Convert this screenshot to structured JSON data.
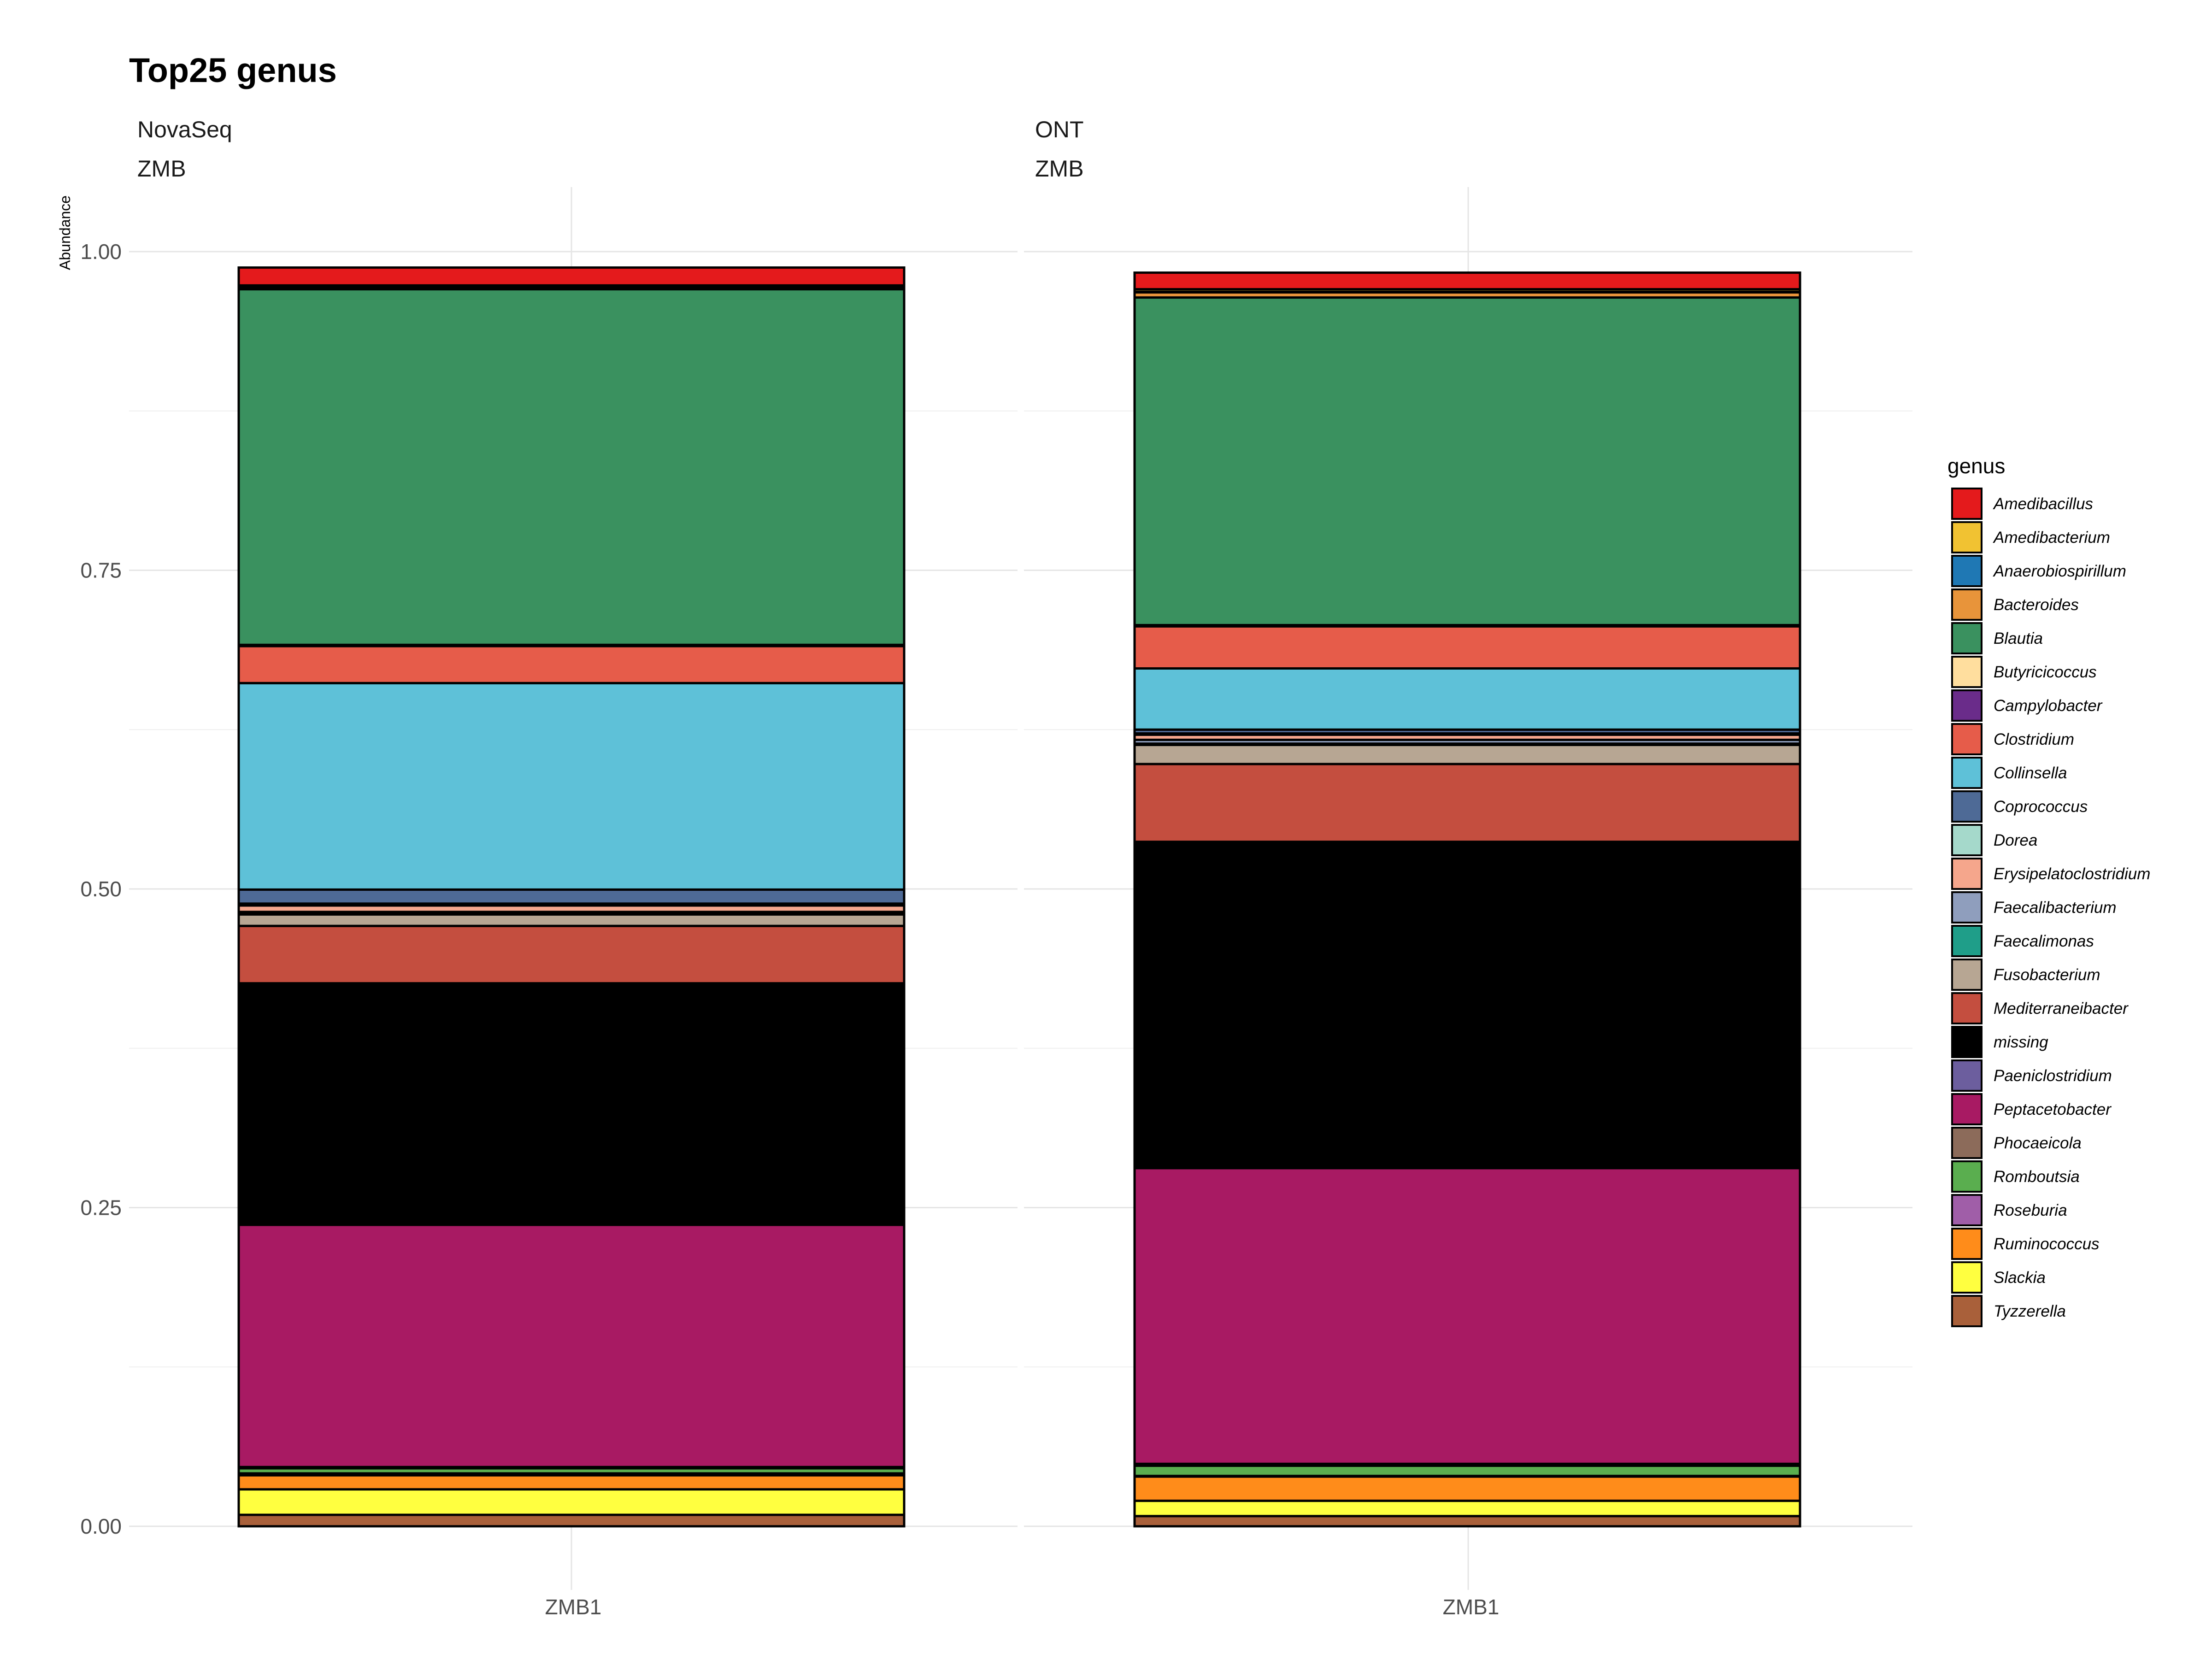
{
  "chart_data": {
    "type": "bar",
    "stacked": true,
    "title": "Top25 genus",
    "ylabel": "Abundance",
    "xlabel": "",
    "ylim": [
      0,
      1
    ],
    "y_ticks": [
      "0.00",
      "0.25",
      "0.50",
      "0.75",
      "1.00"
    ],
    "grid": true,
    "legend_title": "genus",
    "legend_position": "right",
    "facets": [
      {
        "strip": [
          "NovaSeq",
          "ZMB"
        ],
        "categories": [
          "ZMB1"
        ]
      },
      {
        "strip": [
          "ONT",
          "ZMB"
        ],
        "categories": [
          "ZMB1"
        ]
      }
    ],
    "series": [
      {
        "name": "Amedibacillus",
        "color": "#E41A1C",
        "values": [
          0.014,
          0.013
        ]
      },
      {
        "name": "Amedibacterium",
        "color": "#F1C232",
        "values": [
          0.001,
          0.002
        ]
      },
      {
        "name": "Anaerobiospirillum",
        "color": "#1F78B4",
        "values": [
          0.0005,
          0.0005
        ]
      },
      {
        "name": "Bacteroides",
        "color": "#E8943A",
        "values": [
          0.0015,
          0.004
        ]
      },
      {
        "name": "Blautia",
        "color": "#3A915F",
        "values": [
          0.279,
          0.257
        ]
      },
      {
        "name": "Butyricicoccus",
        "color": "#FFDE9E",
        "values": [
          0.0005,
          0.0005
        ]
      },
      {
        "name": "Campylobacter",
        "color": "#6A2C8A",
        "values": [
          0.0005,
          0.0005
        ]
      },
      {
        "name": "Clostridium",
        "color": "#E65C4A",
        "values": [
          0.029,
          0.033
        ]
      },
      {
        "name": "Collinsella",
        "color": "#5EC1D8",
        "values": [
          0.162,
          0.048
        ]
      },
      {
        "name": "Coprococcus",
        "color": "#4E6A96",
        "values": [
          0.011,
          0.003
        ]
      },
      {
        "name": "Dorea",
        "color": "#A5D9CB",
        "values": [
          0.0015,
          0.001
        ]
      },
      {
        "name": "Erysipelatoclostridium",
        "color": "#F5A68C",
        "values": [
          0.005,
          0.004
        ]
      },
      {
        "name": "Faecalibacterium",
        "color": "#8F9EBD",
        "values": [
          0.001,
          0.003
        ]
      },
      {
        "name": "Faecalimonas",
        "color": "#1F9E89",
        "values": [
          0.001,
          0.001
        ]
      },
      {
        "name": "Fusobacterium",
        "color": "#B7A693",
        "values": [
          0.009,
          0.015
        ]
      },
      {
        "name": "Mediterraneibacter",
        "color": "#C44E3F",
        "values": [
          0.045,
          0.061
        ]
      },
      {
        "name": "missing",
        "color": "#000000",
        "values": [
          0.189,
          0.255
        ]
      },
      {
        "name": "Paeniclostridium",
        "color": "#6C5E9E",
        "values": [
          0.0005,
          0.001
        ]
      },
      {
        "name": "Peptacetobacter",
        "color": "#A81A63",
        "values": [
          0.19,
          0.232
        ]
      },
      {
        "name": "Phocaeicola",
        "color": "#8C6B5A",
        "values": [
          0.001,
          0.0015
        ]
      },
      {
        "name": "Romboutsia",
        "color": "#5AAE4F",
        "values": [
          0.004,
          0.008
        ]
      },
      {
        "name": "Roseburia",
        "color": "#A05EA8",
        "values": [
          0.0015,
          0.0005
        ]
      },
      {
        "name": "Ruminococcus",
        "color": "#FF8C1A",
        "values": [
          0.011,
          0.019
        ]
      },
      {
        "name": "Slackia",
        "color": "#FFFF40",
        "values": [
          0.02,
          0.012
        ]
      },
      {
        "name": "Tyzzerella",
        "color": "#A9603A",
        "values": [
          0.009,
          0.008
        ]
      }
    ]
  }
}
